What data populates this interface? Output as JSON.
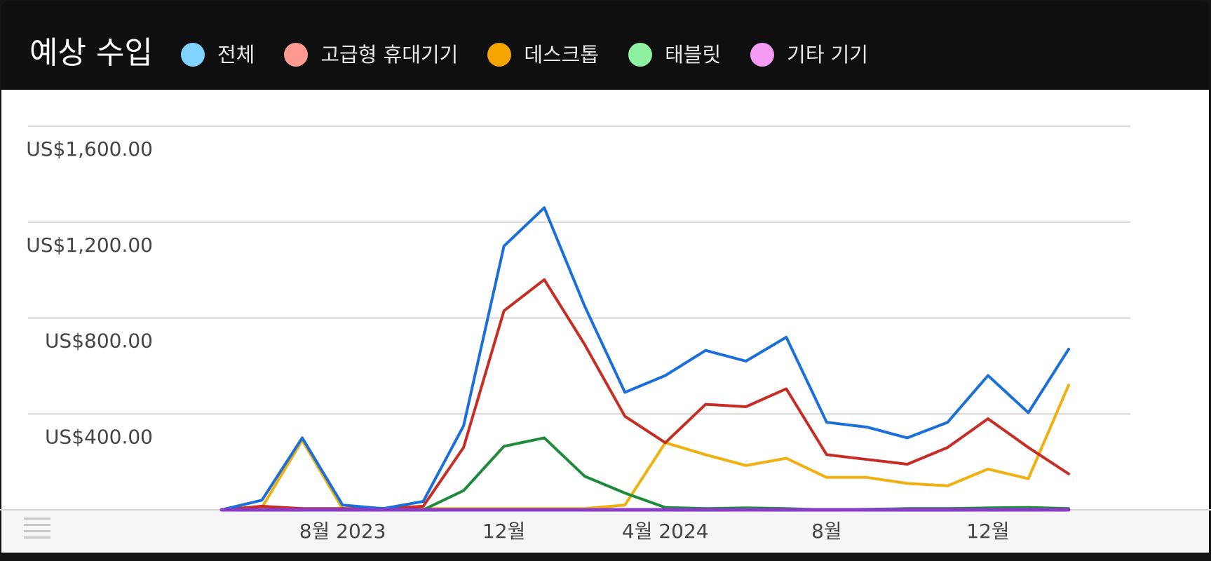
{
  "header": {
    "title": "예상 수입"
  },
  "chart_data": {
    "type": "line",
    "title": "예상 수입",
    "xlabel": "",
    "ylabel": "",
    "x": [
      "2023-05",
      "2023-06",
      "2023-07",
      "2023-08",
      "2023-09",
      "2023-10",
      "2023-11",
      "2023-12",
      "2024-01",
      "2024-02",
      "2024-03",
      "2024-04",
      "2024-05",
      "2024-06",
      "2024-07",
      "2024-08",
      "2024-09",
      "2024-10",
      "2024-11",
      "2024-12",
      "2025-01",
      "2025-02"
    ],
    "x_tick_labels": [
      "8월 2023",
      "12월",
      "4월 2024",
      "8월",
      "12월"
    ],
    "y_tick_labels": [
      "US$1,600.00",
      "US$1,200.00",
      "US$800.00",
      "US$400.00"
    ],
    "y_ticks": [
      400,
      800,
      1200,
      1600
    ],
    "ylim": [
      0,
      1600
    ],
    "grid": true,
    "legend_position": "top",
    "series": [
      {
        "name": "전체",
        "legend_color": "#7fd3ff",
        "line_color": "#1a6fd8",
        "values": [
          0,
          40,
          300,
          20,
          5,
          35,
          350,
          1100,
          1260,
          850,
          490,
          560,
          665,
          620,
          720,
          365,
          345,
          300,
          365,
          560,
          405,
          670
        ]
      },
      {
        "name": "고급형 휴대기기",
        "legend_color": "#ff9a90",
        "line_color": "#c62d24",
        "values": [
          0,
          15,
          5,
          5,
          5,
          15,
          260,
          830,
          960,
          690,
          390,
          280,
          440,
          430,
          505,
          230,
          210,
          190,
          260,
          380,
          260,
          150
        ]
      },
      {
        "name": "데스크톱",
        "legend_color": "#f5a400",
        "line_color": "#f0b010",
        "values": [
          0,
          10,
          290,
          5,
          5,
          5,
          5,
          5,
          5,
          5,
          20,
          280,
          230,
          185,
          215,
          135,
          135,
          110,
          100,
          170,
          130,
          520
        ]
      },
      {
        "name": "태블릿",
        "legend_color": "#8ef2a2",
        "line_color": "#1f8a3a",
        "values": [
          0,
          0,
          0,
          0,
          0,
          0,
          80,
          265,
          300,
          140,
          70,
          10,
          5,
          8,
          5,
          0,
          2,
          5,
          5,
          8,
          10,
          5
        ]
      },
      {
        "name": "기타 기기",
        "legend_color": "#f59bf5",
        "line_color": "#8a3cc8",
        "values": [
          0,
          0,
          0,
          0,
          0,
          0,
          0,
          0,
          0,
          0,
          0,
          0,
          0,
          0,
          0,
          0,
          0,
          0,
          0,
          0,
          0,
          0
        ]
      }
    ]
  }
}
